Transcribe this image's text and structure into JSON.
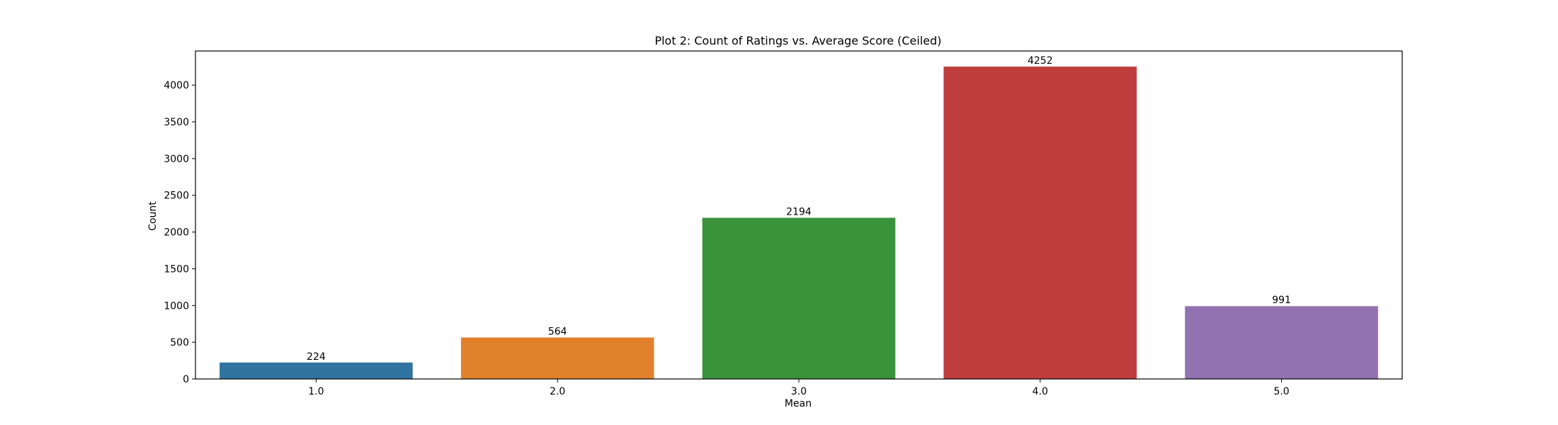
{
  "chart_data": {
    "type": "bar",
    "title": "Plot 2: Count of Ratings vs. Average Score (Ceiled)",
    "xlabel": "Mean",
    "ylabel": "Count",
    "categories": [
      "1.0",
      "2.0",
      "3.0",
      "4.0",
      "5.0"
    ],
    "values": [
      224,
      564,
      2194,
      4252,
      991
    ],
    "data_labels": [
      "224",
      "564",
      "2194",
      "4252",
      "991"
    ],
    "colors": [
      "#3274a1",
      "#e1812c",
      "#3a923a",
      "#c03d3e",
      "#9372b2"
    ],
    "ylim": [
      0,
      4464.6
    ],
    "yticks": [
      0,
      500,
      1000,
      1500,
      2000,
      2500,
      3000,
      3500,
      4000
    ],
    "ytick_labels": [
      "0",
      "500",
      "1000",
      "1500",
      "2000",
      "2500",
      "3000",
      "3500",
      "4000"
    ],
    "grid": false,
    "legend": false
  }
}
